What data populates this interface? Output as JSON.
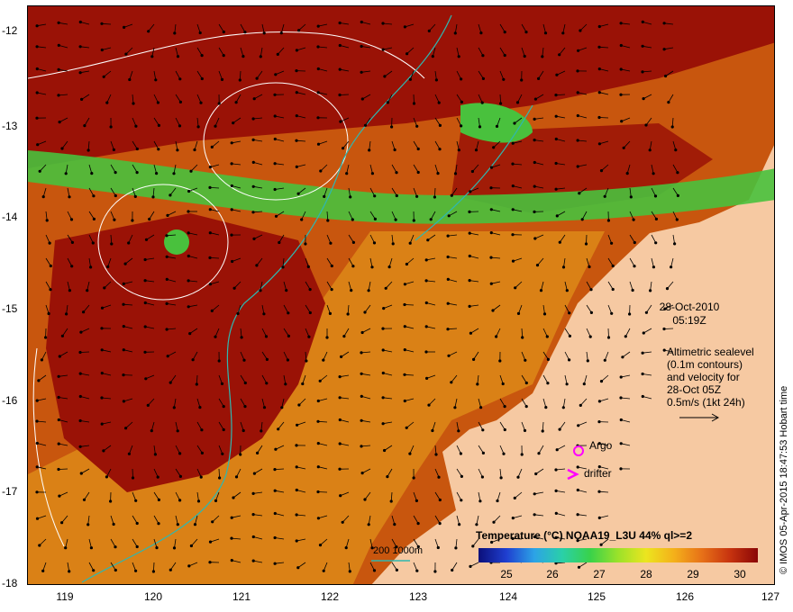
{
  "axes": {
    "x_ticks": [
      "119",
      "120",
      "121",
      "122",
      "123",
      "124",
      "125",
      "126",
      "127"
    ],
    "y_ticks": [
      "-12",
      "-13",
      "-14",
      "-15",
      "-16",
      "-17",
      "-18"
    ]
  },
  "annotations": {
    "date": "28-Oct-2010",
    "time": "05:19Z",
    "altimetry": [
      "Altimetric sealevel",
      "(0.1m contours)",
      "and velocity for",
      "28-Oct 05Z",
      "0.5m/s (1kt 24h)"
    ],
    "argo_label": "Argo",
    "drifter_label": "drifter",
    "isobath_label": "200  1000m"
  },
  "legend": {
    "title": "Temperature (°C) NOAA19_L3U 44% ql>=2",
    "ticks": [
      "25",
      "26",
      "27",
      "28",
      "29",
      "30"
    ]
  },
  "credit": "© IMOS 05-Apr-2015 18:47:53 Hobart time",
  "colors": {
    "land": "#f6c9a2",
    "sea_hot": "#9a1206",
    "sea_warm": "#c8560e",
    "sea_mid": "#e0901a",
    "cool_band": "#49c13d",
    "isobath": "#2fb7b0",
    "contour": "#ffffff",
    "argo": "#ff00ff"
  },
  "chart_data": {
    "type": "heatmap",
    "region": {
      "lon_range": [
        118.6,
        127.0
      ],
      "lat_range": [
        -18.0,
        -11.7
      ]
    },
    "variable": "Sea surface temperature (°C)",
    "colorbar_range": [
      24.5,
      30.5
    ],
    "features": {
      "cool_band_lat": -13.6,
      "eddy_center": {
        "lon": 120.2,
        "lat": -14.2
      },
      "argo": {
        "lon": 124.8,
        "lat": -16.55
      },
      "drifter": {
        "lon": 124.7,
        "lat": -16.8
      }
    }
  }
}
